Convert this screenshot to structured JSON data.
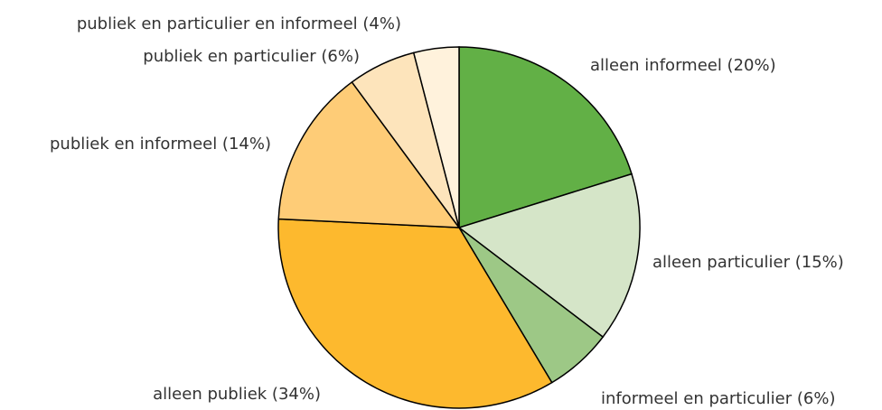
{
  "chart_data": {
    "type": "pie",
    "categories": [
      "alleen informeel (20%)",
      "alleen particulier (15%)",
      "informeel en particulier (6%)",
      "alleen publiek (34%)",
      "publiek en informeel (14%)",
      "publiek en particulier (6%)",
      "publiek en particulier en informeel (4%)"
    ],
    "values": [
      20,
      15,
      6,
      34,
      14,
      6,
      4
    ],
    "colors": [
      "#62b046",
      "#d5e5c8",
      "#9dc886",
      "#fdb92e",
      "#fecc77",
      "#fde4bb",
      "#fff2dc"
    ]
  }
}
